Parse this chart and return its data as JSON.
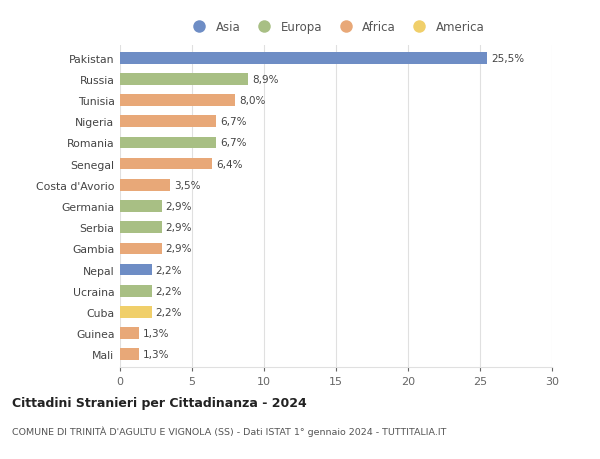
{
  "categories": [
    "Pakistan",
    "Russia",
    "Tunisia",
    "Nigeria",
    "Romania",
    "Senegal",
    "Costa d'Avorio",
    "Germania",
    "Serbia",
    "Gambia",
    "Nepal",
    "Ucraina",
    "Cuba",
    "Guinea",
    "Mali"
  ],
  "values": [
    25.5,
    8.9,
    8.0,
    6.7,
    6.7,
    6.4,
    3.5,
    2.9,
    2.9,
    2.9,
    2.2,
    2.2,
    2.2,
    1.3,
    1.3
  ],
  "labels": [
    "25,5%",
    "8,9%",
    "8,0%",
    "6,7%",
    "6,7%",
    "6,4%",
    "3,5%",
    "2,9%",
    "2,9%",
    "2,9%",
    "2,2%",
    "2,2%",
    "2,2%",
    "1,3%",
    "1,3%"
  ],
  "continents": [
    "Asia",
    "Europa",
    "Africa",
    "Africa",
    "Europa",
    "Africa",
    "Africa",
    "Europa",
    "Europa",
    "Africa",
    "Asia",
    "Europa",
    "America",
    "Africa",
    "Africa"
  ],
  "colors": {
    "Asia": "#6e8dc5",
    "Europa": "#a8bf84",
    "Africa": "#e8a878",
    "America": "#f0cf6a"
  },
  "legend_labels": [
    "Asia",
    "Europa",
    "Africa",
    "America"
  ],
  "legend_colors": [
    "#6e8dc5",
    "#a8bf84",
    "#e8a878",
    "#f0cf6a"
  ],
  "title": "Cittadini Stranieri per Cittadinanza - 2024",
  "subtitle": "COMUNE DI TRINITÀ D'AGULTU E VIGNOLA (SS) - Dati ISTAT 1° gennaio 2024 - TUTTITALIA.IT",
  "xlim": [
    0,
    30
  ],
  "xticks": [
    0,
    5,
    10,
    15,
    20,
    25,
    30
  ],
  "background_color": "#ffffff",
  "grid_color": "#e0e0e0",
  "bar_height": 0.55
}
